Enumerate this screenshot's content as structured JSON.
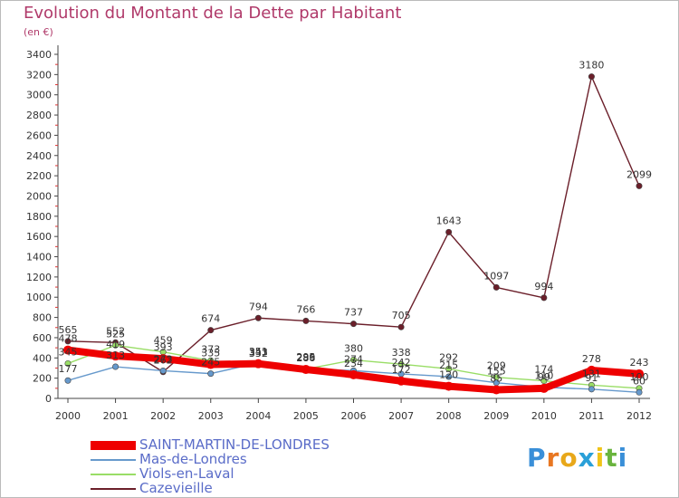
{
  "chart_data": {
    "type": "line",
    "title": "Evolution du Montant de la Dette par Habitant",
    "subtitle": "(en €)",
    "xlabel": "",
    "ylabel": "",
    "ylim": [
      0,
      3400
    ],
    "yticks": [
      0,
      200,
      400,
      600,
      800,
      1000,
      1200,
      1400,
      1600,
      1800,
      2000,
      2200,
      2400,
      2600,
      2800,
      3000,
      3200,
      3400
    ],
    "categories": [
      "2000",
      "2001",
      "2002",
      "2003",
      "2004",
      "2005",
      "2006",
      "2007",
      "2008",
      "2009",
      "2010",
      "2011",
      "2012"
    ],
    "grid": false,
    "legend_position": "bottom-left",
    "series": [
      {
        "name": "Cazevieille",
        "color": "#6b1f2a",
        "values": [
          565,
          552,
          262,
          674,
          794,
          766,
          737,
          705,
          1643,
          1097,
          994,
          3180,
          2099
        ]
      },
      {
        "name": "Viols-en-Laval",
        "color": "#99dd66",
        "values": [
          345,
          525,
          459,
          373,
          332,
          289,
          380,
          338,
          292,
          209,
          174,
          131,
          100
        ]
      },
      {
        "name": "Mas-de-Londres",
        "color": "#6699cc",
        "values": [
          177,
          313,
          273,
          245,
          351,
          295,
          274,
          242,
          215,
          155,
          110,
          91,
          60
        ]
      },
      {
        "name": "SAINT-MARTIN-DE-LONDRES",
        "color": "#ee0000",
        "values": [
          478,
          419,
          393,
          335,
          343,
          286,
          234,
          172,
          120,
          85,
          99,
          278,
          243
        ]
      }
    ]
  },
  "legend": {
    "items": [
      {
        "label": "SAINT-MARTIN-DE-LONDRES",
        "color": "#ee0000",
        "thickness": 10
      },
      {
        "label": "Mas-de-Londres",
        "color": "#6699cc",
        "thickness": 2
      },
      {
        "label": "Viols-en-Laval",
        "color": "#99dd66",
        "thickness": 2
      },
      {
        "label": "Cazevieille",
        "color": "#6b1f2a",
        "thickness": 2
      }
    ]
  },
  "logo": {
    "letters": [
      "P",
      "r",
      "o",
      "x",
      "i",
      "t",
      "i"
    ],
    "colors": [
      "#3a8fd8",
      "#e87722",
      "#e8a81a",
      "#2aa0d8",
      "#f0c419",
      "#6ab43e",
      "#3a8fd8"
    ]
  }
}
